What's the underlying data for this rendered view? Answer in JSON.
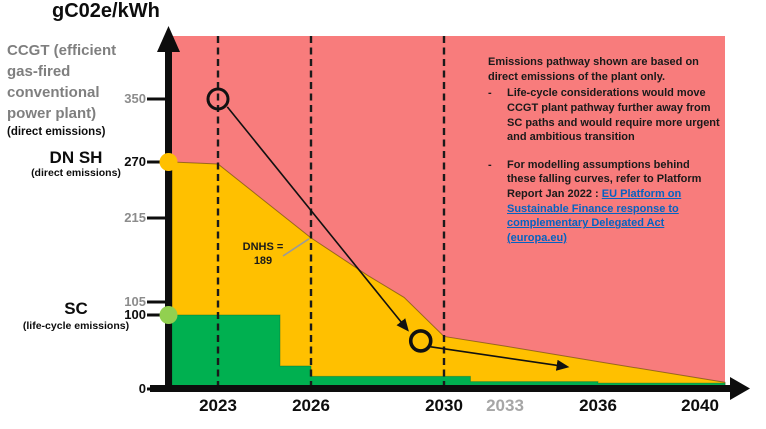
{
  "title": "gC02e/kWh",
  "left_labels": {
    "ccgt_title": "CCGT (efficient gas-fired conventional power plant)",
    "ccgt_sub": "(direct emissions)",
    "dnsh_title": "DN SH",
    "dnsh_sub": "(direct emissions)",
    "sc_title": "SC",
    "sc_sub": "(life-cycle emissions)"
  },
  "y_axis": {
    "ticks": [
      {
        "label": "350",
        "value": 350,
        "gray": true
      },
      {
        "label": "270",
        "value": 270,
        "gray": false
      },
      {
        "label": "215",
        "value": 215,
        "gray": true
      },
      {
        "label": "105",
        "value": 105,
        "gray": true
      },
      {
        "label": "100",
        "value": 100,
        "gray": false
      },
      {
        "label": "0",
        "value": 0,
        "gray": false
      }
    ]
  },
  "x_axis": {
    "ticks": [
      {
        "label": "2023",
        "value": 2023,
        "gray": false
      },
      {
        "label": "2026",
        "value": 2026,
        "gray": false
      },
      {
        "label": "2030",
        "value": 2030,
        "gray": false
      },
      {
        "label": "2033",
        "value": 2033,
        "gray": true
      },
      {
        "label": "2036",
        "value": 2036,
        "gray": false
      },
      {
        "label": "2040",
        "value": 2040,
        "gray": false
      }
    ]
  },
  "annotations": {
    "dnhs_line1": "DNHS =",
    "dnhs_line2": "189",
    "bullet_marker": "-"
  },
  "notes": {
    "para": "Emissions pathway shown are based on direct emissions of the plant only.",
    "bullet1": "Life-cycle considerations would move CCGT plant pathway further away from SC paths and would require more urgent and ambitious transition",
    "bullet2_prefix": "For modelling assumptions behind these falling curves, refer to Platform Report Jan 2022 : ",
    "bullet2_link": "EU Platform on Sustainable Finance response to complementary Delegated Act (europa.eu)"
  },
  "colors": {
    "ccgt_region": "#F87C7C",
    "dnsh_area": "#FFC000",
    "sc_area": "#00B050",
    "dnsh_axis_dot": "#FFC000",
    "sc_axis_dot": "#92D050",
    "link_blue": "#0563C1",
    "gray_text": "#7F7F7F",
    "ink": "#111111"
  },
  "chart_data": {
    "type": "area",
    "title": "gC02e/kWh",
    "ylabel": "gC02e/kWh",
    "xlim": [
      2021.5,
      2040.8
    ],
    "ylim": [
      0,
      420
    ],
    "x_ticks": [
      2023,
      2026,
      2030,
      2033,
      2036,
      2040
    ],
    "y_ticks": [
      0,
      100,
      105,
      215,
      270,
      350
    ],
    "dashed_years": [
      2023,
      2026,
      2030
    ],
    "legend_position": "none",
    "grid": false,
    "regions": [
      {
        "name": "CCGT (efficient gas-fired conventional power plant), direct emissions",
        "color": "#F87C7C",
        "description": "background region above the DNSH pathway"
      },
      {
        "name": "DNSH direct-emissions compliant zone",
        "color": "#FFC000"
      },
      {
        "name": "SC life-cycle-emissions compliant zone",
        "color": "#00B050"
      }
    ],
    "series": [
      {
        "name": "DNSH pathway (direct emissions), falling curve",
        "type": "area",
        "color": "#FFC000",
        "points": [
          [
            2021.5,
            270
          ],
          [
            2023,
            268
          ],
          [
            2026,
            189
          ],
          [
            2027.7,
            140
          ],
          [
            2028.8,
            111
          ],
          [
            2030,
            71
          ],
          [
            2033,
            58
          ],
          [
            2036,
            37
          ],
          [
            2040.8,
            9
          ]
        ]
      },
      {
        "name": "SC pathway (life-cycle emissions), step curve",
        "type": "step-area",
        "color": "#00B050",
        "steps": [
          [
            2021.5,
            2025,
            100
          ],
          [
            2025,
            2026,
            31
          ],
          [
            2026,
            2031.3,
            17
          ],
          [
            2031.3,
            2036,
            10
          ],
          [
            2036,
            2040.8,
            8
          ]
        ]
      }
    ],
    "markers": [
      {
        "name": "CCGT plant today",
        "shape": "circle-outline",
        "x": 2023,
        "y": 350
      },
      {
        "name": "transition target point",
        "shape": "circle-outline",
        "x": 2029.3,
        "y": 65
      }
    ],
    "arrows": [
      {
        "name": "ccgt-transition-arrow-1",
        "from": [
          2023.3,
          340
        ],
        "to": [
          2028.9,
          80
        ]
      },
      {
        "name": "ccgt-transition-arrow-2",
        "from": [
          2029.6,
          57
        ],
        "to": [
          2035,
          30
        ]
      }
    ],
    "point_annotations": [
      {
        "text": "DNHS = 189",
        "x": 2026,
        "y": 189
      }
    ],
    "axis_dots": [
      {
        "value": 270,
        "color": "#FFC000",
        "meaning": "DN SH direct emissions threshold"
      },
      {
        "value": 100,
        "color": "#92D050",
        "meaning": "SC life-cycle emissions threshold"
      }
    ]
  }
}
